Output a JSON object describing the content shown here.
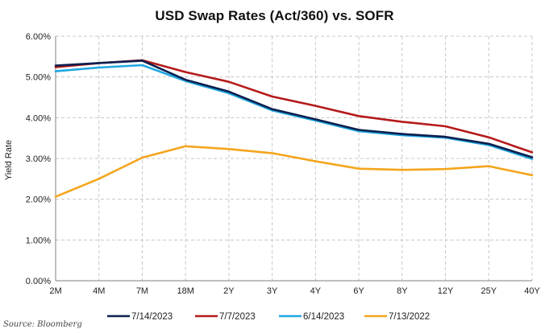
{
  "chart_data": {
    "type": "line",
    "title": "USD Swap Rates (Act/360) vs. SOFR",
    "xlabel": "",
    "ylabel": "Yield Rate",
    "categories": [
      "2M",
      "4M",
      "7M",
      "18M",
      "2Y",
      "3Y",
      "4Y",
      "6Y",
      "8Y",
      "12Y",
      "25Y",
      "40Y"
    ],
    "yticks": [
      "0.00%",
      "1.00%",
      "2.00%",
      "3.00%",
      "4.00%",
      "5.00%",
      "6.00%"
    ],
    "ylim": [
      0,
      6
    ],
    "grid": true,
    "legend_position": "bottom",
    "series": [
      {
        "name": "7/14/2023",
        "color": "#0b1f4d",
        "values": [
          5.28,
          5.34,
          5.4,
          4.93,
          4.64,
          4.21,
          3.96,
          3.7,
          3.6,
          3.53,
          3.36,
          3.03
        ]
      },
      {
        "name": "7/7/2023",
        "color": "#b51a1a",
        "values": [
          5.24,
          5.34,
          5.41,
          5.12,
          4.88,
          4.52,
          4.29,
          4.04,
          3.9,
          3.79,
          3.52,
          3.15
        ]
      },
      {
        "name": "6/14/2023",
        "color": "#1fa7e0",
        "values": [
          5.14,
          5.23,
          5.29,
          4.9,
          4.6,
          4.18,
          3.93,
          3.67,
          3.57,
          3.51,
          3.33,
          2.99
        ]
      },
      {
        "name": "7/13/2022",
        "color": "#f4a51c",
        "values": [
          2.06,
          2.5,
          3.02,
          3.3,
          3.23,
          3.13,
          2.93,
          2.75,
          2.72,
          2.74,
          2.81,
          2.59
        ]
      }
    ]
  },
  "source_note": "Source: Bloomberg"
}
